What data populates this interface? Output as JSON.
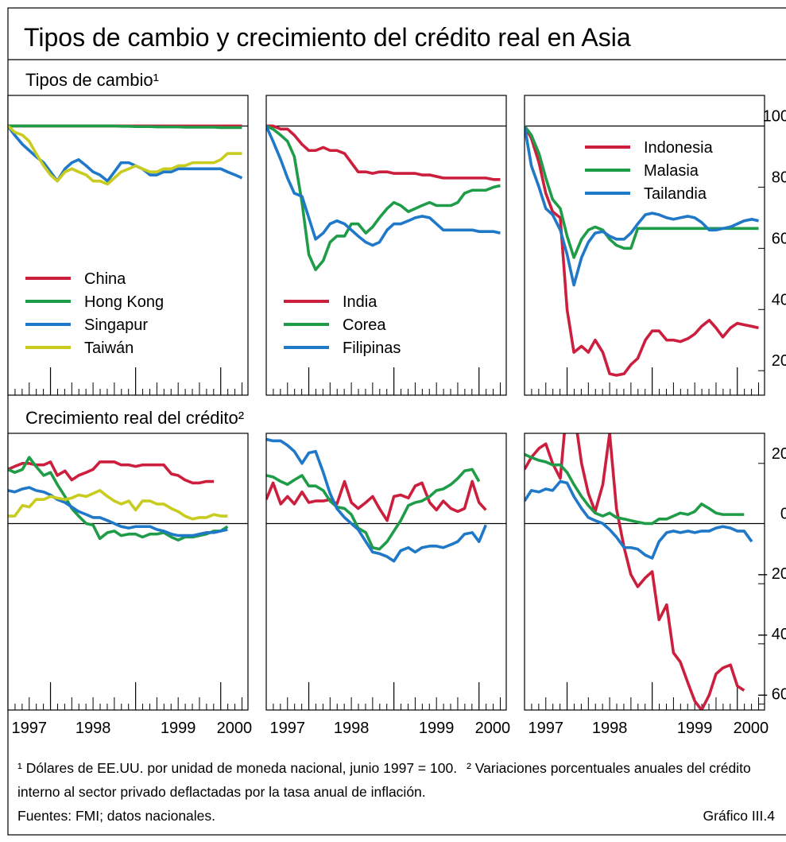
{
  "title": "Tipos de cambio y crecimiento del crédito real en Asia",
  "chart_data": [
    {
      "type": "line",
      "title": "Tipos de cambio¹",
      "x": [
        1997.5,
        1997.58,
        1997.67,
        1997.75,
        1997.83,
        1997.92,
        1998,
        1998.08,
        1998.17,
        1998.25,
        1998.33,
        1998.42,
        1998.5,
        1998.58,
        1998.67,
        1998.75,
        1998.83,
        1998.92,
        1999,
        1999.08,
        1999.17,
        1999.25,
        1999.33,
        1999.42,
        1999.5,
        1999.58,
        1999.67,
        1999.75,
        1999.83,
        1999.92,
        2000,
        2000.08,
        2000.17,
        2000.25
      ],
      "xlim": [
        1997.5,
        2000.32
      ],
      "xticks": [
        1997,
        1998,
        1999,
        2000
      ],
      "ylim": [
        12,
        110
      ],
      "yticks": [
        20,
        40,
        60,
        80,
        100
      ],
      "reference_line": 100,
      "panels": [
        {
          "legend": "lower left",
          "series": [
            {
              "name": "China",
              "color": "#cc1f3d",
              "values": [
                100,
                100,
                100,
                100,
                100,
                100,
                100,
                100,
                100,
                100,
                100,
                100,
                100,
                100,
                100,
                100,
                100,
                100,
                100,
                100,
                100,
                100,
                100,
                100,
                100,
                100,
                100,
                100,
                100,
                100,
                100,
                100,
                100,
                100
              ]
            },
            {
              "name": "Hong Kong",
              "color": "#1f9c48",
              "values": [
                100,
                100,
                100,
                100,
                100,
                100,
                100,
                100,
                100,
                100,
                100,
                100,
                100,
                100,
                100,
                100,
                99.9,
                99.9,
                99.8,
                99.8,
                99.8,
                99.7,
                99.7,
                99.7,
                99.7,
                99.6,
                99.6,
                99.6,
                99.6,
                99.6,
                99.5,
                99.5,
                99.5,
                99.5
              ]
            },
            {
              "name": "Singapur",
              "color": "#1f78c8",
              "values": [
                100,
                97,
                94,
                92,
                90,
                88,
                85,
                82,
                86,
                88,
                89,
                87,
                85,
                84,
                82,
                85,
                88,
                88,
                87,
                86,
                84,
                84,
                85,
                85,
                86,
                86,
                86,
                86,
                86,
                86,
                86,
                85,
                84,
                83
              ]
            },
            {
              "name": "Taiwán",
              "color": "#c8cc1e",
              "values": [
                100,
                98,
                97,
                95,
                91,
                87,
                84,
                82,
                85,
                86,
                85,
                84,
                82,
                82,
                81,
                83,
                85,
                86,
                87,
                86,
                85,
                85,
                86,
                86,
                87,
                87,
                88,
                88,
                88,
                88,
                89,
                91,
                91,
                91
              ]
            }
          ]
        },
        {
          "legend": "lower left",
          "series": [
            {
              "name": "India",
              "color": "#cc1f3d",
              "values": [
                100,
                100,
                99,
                99,
                97,
                94,
                92,
                92,
                93,
                92,
                92,
                91,
                88,
                85,
                85,
                84.5,
                85,
                85,
                84.5,
                84.5,
                84.5,
                84.5,
                84,
                84,
                83.5,
                83,
                83,
                83,
                83,
                83,
                83,
                83,
                82.5,
                82.5
              ]
            },
            {
              "name": "Corea",
              "color": "#1f9c48",
              "values": [
                100,
                99,
                97,
                95,
                90,
                75,
                58,
                53,
                56,
                62,
                64,
                64,
                68,
                68,
                65,
                67,
                70,
                73,
                75,
                74,
                72,
                73,
                74,
                75,
                74,
                74,
                74,
                75,
                78,
                79,
                79,
                79,
                80,
                80.5
              ]
            },
            {
              "name": "Filipinas",
              "color": "#1f78c8",
              "values": [
                100,
                95,
                89,
                83,
                78,
                77,
                70,
                63,
                65,
                68,
                69,
                68,
                66,
                64,
                62,
                61,
                62,
                66,
                68,
                68,
                69,
                70,
                70.5,
                70,
                68,
                66,
                66,
                66,
                66,
                66,
                65.5,
                65.5,
                65.5,
                65
              ]
            }
          ]
        },
        {
          "legend": "upper right",
          "series": [
            {
              "name": "Indonesia",
              "color": "#cc1f3d",
              "values": [
                100,
                96,
                88,
                78,
                72,
                70,
                40,
                26,
                28,
                26,
                30,
                26,
                19,
                18.5,
                19,
                22,
                24,
                30,
                33,
                33,
                30,
                30,
                29.5,
                30.5,
                32,
                34.5,
                36.5,
                34,
                31,
                34,
                35.5,
                35,
                34.5,
                34
              ]
            },
            {
              "name": "Malasia",
              "color": "#1f9c48",
              "values": [
                100,
                97,
                91,
                83,
                76,
                73,
                64,
                57,
                63,
                66,
                67,
                66,
                63,
                61,
                60,
                60,
                66.5,
                66.5,
                66.5,
                66.5,
                66.5,
                66.5,
                66.5,
                66.5,
                66.5,
                66.5,
                66.5,
                66.5,
                66.5,
                66.5,
                66.5,
                66.5,
                66.5,
                66.5
              ]
            },
            {
              "name": "Tailandia",
              "color": "#1f78c8",
              "values": [
                100,
                87,
                80,
                73,
                71,
                66,
                58,
                48,
                57,
                62,
                65,
                65.5,
                64,
                63,
                63,
                65,
                68,
                71,
                71.5,
                71,
                70,
                69.5,
                70,
                70.5,
                70,
                68.5,
                66,
                66,
                66.5,
                67,
                68,
                69,
                69.5,
                69
              ]
            }
          ]
        }
      ]
    },
    {
      "type": "line",
      "title": "Crecimiento real del crédito²",
      "x": [
        1997.5,
        1997.58,
        1997.67,
        1997.75,
        1997.83,
        1997.92,
        1998,
        1998.08,
        1998.17,
        1998.25,
        1998.33,
        1998.42,
        1998.5,
        1998.58,
        1998.67,
        1998.75,
        1998.83,
        1998.92,
        1999,
        1999.08,
        1999.17,
        1999.25,
        1999.33,
        1999.42,
        1999.5,
        1999.58,
        1999.67,
        1999.75,
        1999.83,
        1999.92,
        2000,
        2000.08,
        2000.17,
        2000.25
      ],
      "xlim": [
        1997.5,
        2000.32
      ],
      "xticks": [
        1997,
        1998,
        1999,
        2000
      ],
      "ylim": [
        -62,
        30
      ],
      "yticks": [
        {
          "value": -60,
          "label": "– 60"
        },
        {
          "value": -40,
          "label": "– 40"
        },
        {
          "value": -20,
          "label": "– 20"
        },
        0,
        20
      ],
      "reference_line": 0,
      "panels": [
        {
          "series": [
            {
              "color": "#cc1f3d",
              "values": [
                18,
                19,
                20,
                20,
                19.5,
                19.5,
                20.5,
                16,
                17.5,
                14.5,
                16,
                17,
                18,
                20.5,
                20.5,
                20.5,
                19.5,
                19.5,
                19,
                19.5,
                19.5,
                19.5,
                19.5,
                16.5,
                16,
                14.5,
                13.5,
                13.5,
                14,
                14,
                null,
                null,
                null,
                null
              ]
            },
            {
              "color": "#1f9c48",
              "values": [
                18,
                17,
                18,
                22,
                19,
                16,
                17,
                13,
                9,
                5,
                2.5,
                0,
                -0.5,
                -5,
                -3,
                -2.5,
                -4,
                -3.5,
                -3.5,
                -4.5,
                -3.5,
                -3.5,
                -3,
                -4.5,
                -5.5,
                -4.5,
                -4.5,
                -4,
                -3.5,
                -2.5,
                -2.5,
                -1,
                null,
                null
              ]
            },
            {
              "color": "#1f78c8",
              "values": [
                11,
                10.5,
                11.5,
                12,
                11,
                10.5,
                9.5,
                8,
                7,
                5.5,
                4,
                3,
                2,
                2,
                1,
                0,
                -1,
                -1.5,
                -1,
                -1,
                -1,
                -2,
                -2.5,
                -3.5,
                -4,
                -4,
                -4,
                -3.5,
                -3,
                -3,
                -2.5,
                -2,
                null,
                null
              ]
            },
            {
              "color": "#c8cc1e",
              "values": [
                2.5,
                2.5,
                6,
                5.5,
                8,
                8,
                9,
                8.5,
                8,
                8.5,
                9.5,
                9,
                10,
                11,
                9,
                7.5,
                6.5,
                7.5,
                4.5,
                7.5,
                7.5,
                6.5,
                6.5,
                5,
                4,
                2.5,
                1.5,
                2,
                2,
                3,
                2.5,
                2.5,
                null,
                null
              ]
            }
          ]
        },
        {
          "series": [
            {
              "color": "#cc1f3d",
              "values": [
                8,
                13.5,
                6.5,
                9,
                6.5,
                10.5,
                7,
                7.5,
                7.5,
                8,
                6.5,
                14,
                7,
                5,
                7,
                9,
                5,
                1,
                9,
                9.5,
                8.5,
                12.5,
                13.5,
                7,
                4.5,
                7.5,
                5,
                4,
                5,
                14,
                7,
                4.5,
                null,
                null
              ]
            },
            {
              "color": "#1f9c48",
              "values": [
                16,
                15.5,
                14,
                13,
                14.5,
                16,
                12.5,
                12.5,
                11,
                7.5,
                5.5,
                5,
                3,
                -1.5,
                -3,
                -8,
                -8.5,
                -6,
                -2.5,
                1,
                6,
                7,
                7.5,
                9,
                11,
                11.5,
                13,
                15,
                17.5,
                18,
                14,
                null,
                null,
                null
              ]
            },
            {
              "color": "#1f78c8",
              "values": [
                28,
                27.5,
                27.5,
                26,
                24,
                20,
                23.5,
                24,
                17,
                10,
                5,
                2,
                0,
                -2,
                -6,
                -9.5,
                -10,
                -11,
                -12.5,
                -9,
                -8,
                -9.5,
                -8,
                -7.5,
                -7.5,
                -8,
                -7,
                -6,
                -3.5,
                -3,
                -6,
                -0.5,
                null,
                null
              ]
            }
          ]
        },
        {
          "series": [
            {
              "color": "#cc1f3d",
              "values": [
                18,
                22,
                25,
                26.5,
                20,
                15,
                40,
                38,
                20,
                10,
                4,
                13,
                30,
                5,
                -8,
                -17,
                -21,
                -18,
                -16,
                -32,
                -27,
                -43,
                -46,
                -53,
                -59,
                -62,
                -57,
                -50,
                -48,
                -47,
                -54,
                -55.5,
                null,
                null
              ]
            },
            {
              "color": "#1f9c48",
              "values": [
                23,
                22,
                21,
                20.5,
                19.5,
                19.5,
                17,
                13,
                9,
                6,
                3.5,
                2.5,
                3.5,
                2,
                1.5,
                1,
                0.5,
                0,
                0,
                1.5,
                1.5,
                2.5,
                3.5,
                3,
                4,
                6.5,
                5,
                3.5,
                3,
                3,
                3,
                3,
                null,
                null
              ]
            },
            {
              "color": "#1f78c8",
              "values": [
                7.5,
                11,
                10.5,
                11.5,
                11,
                14,
                13.5,
                9,
                5,
                2,
                1,
                0,
                -2,
                -4.5,
                -8,
                -8,
                -8.5,
                -10.5,
                -11.5,
                -6,
                -3,
                -2.5,
                -3,
                -2.5,
                -3,
                -2.5,
                -2.5,
                -1.5,
                -1,
                -1.5,
                -2.5,
                -2.5,
                -6,
                null
              ]
            }
          ]
        }
      ]
    }
  ],
  "footnotes": [
    "¹ Dólares de EE.UU. por unidad de moneda nacional, junio 1997 = 100.",
    "² Variaciones porcentuales anuales del crédito interno al sector privado deflactadas por la tasa anual de inflación."
  ],
  "source": "Fuentes: FMI; datos nacionales.",
  "chart_number": "Gráfico III.4"
}
